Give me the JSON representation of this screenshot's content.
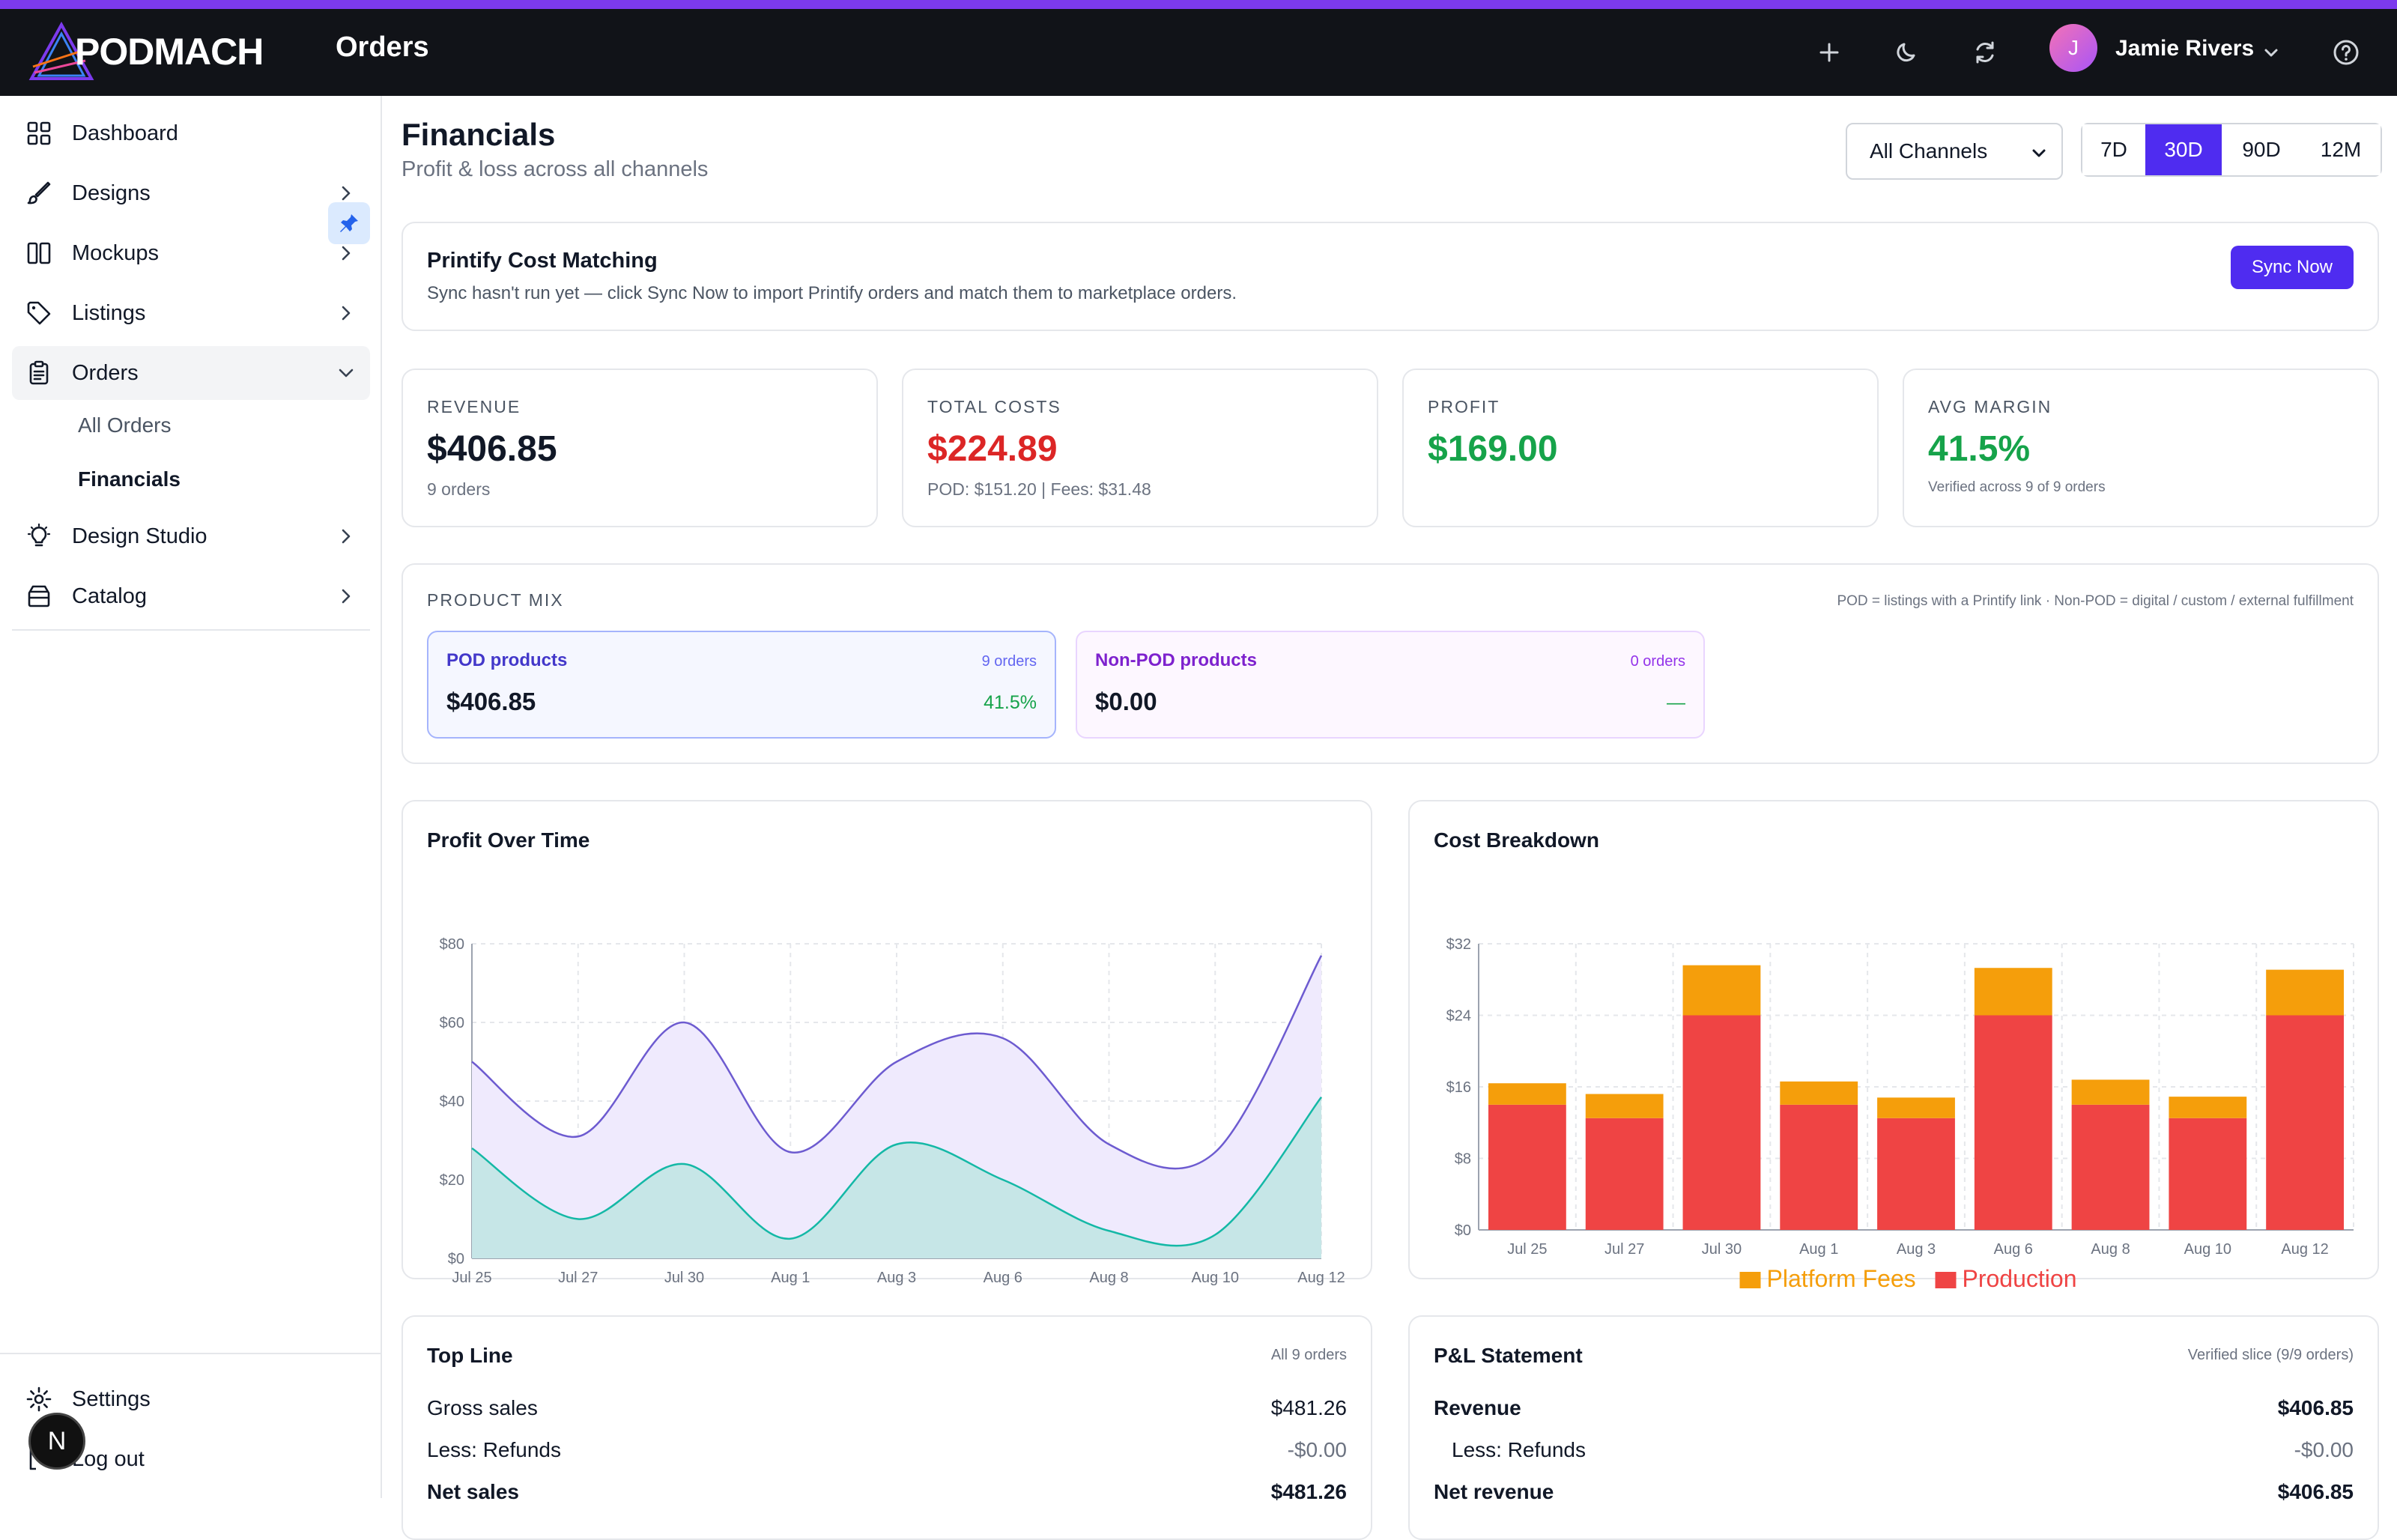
{
  "app": {
    "name": "PODMACH",
    "section": "Orders"
  },
  "topbar": {
    "user": {
      "initial": "J",
      "name": "Jamie Rivers"
    }
  },
  "sidebar": {
    "items": [
      {
        "label": "Dashboard"
      },
      {
        "label": "Designs"
      },
      {
        "label": "Mockups"
      },
      {
        "label": "Listings"
      },
      {
        "label": "Orders"
      },
      {
        "label": "Design Studio"
      },
      {
        "label": "Catalog"
      }
    ],
    "orders_sub": [
      "All Orders",
      "Financials"
    ],
    "footer": [
      {
        "label": "Settings"
      },
      {
        "label": "Log out"
      }
    ],
    "badge": "N"
  },
  "page": {
    "title": "Financials",
    "subtitle": "Profit & loss across all channels"
  },
  "filters": {
    "channel": "All Channels",
    "ranges": [
      "7D",
      "30D",
      "90D",
      "12M"
    ],
    "selected_range": "30D"
  },
  "sync": {
    "title": "Printify Cost Matching",
    "desc": "Sync hasn't run yet — click Sync Now to import Printify orders and match them to marketplace orders.",
    "button": "Sync Now"
  },
  "kpis": [
    {
      "label": "REVENUE",
      "value": "$406.85",
      "note": "9 orders",
      "color": "#111827"
    },
    {
      "label": "TOTAL COSTS",
      "value": "$224.89",
      "note": "POD: $151.20 | Fees: $31.48",
      "color": "#dc2626"
    },
    {
      "label": "PROFIT",
      "value": "$169.00",
      "note": "",
      "color": "#16a34a"
    },
    {
      "label": "AVG MARGIN",
      "value": "41.5%",
      "note": "Verified across 9 of 9 orders",
      "color": "#16a34a"
    }
  ],
  "product_mix": {
    "label": "PRODUCT MIX",
    "note": "POD = listings with a Printify link · Non-POD = digital / custom / external fulfillment",
    "pod": {
      "name": "POD products",
      "count": "9 orders",
      "value": "$406.85",
      "pct": "41.5%"
    },
    "non_pod": {
      "name": "Non-POD products",
      "count": "0 orders",
      "value": "$0.00",
      "pct": "—"
    }
  },
  "profit_chart": {
    "title": "Profit Over Time",
    "colors": {
      "revenue": "#6d5bd0",
      "revenue_fill": "#efeafd",
      "profit": "#14b8a6",
      "profit_fill": "#c3e6e6"
    }
  },
  "cost_chart": {
    "title": "Cost Breakdown",
    "colors": {
      "platform": "#f59e0b",
      "production": "#ef4444"
    }
  },
  "chart_data": [
    {
      "type": "area",
      "title": "Profit Over Time",
      "categories": [
        "Jul 25",
        "Jul 27",
        "Jul 30",
        "Aug 1",
        "Aug 3",
        "Aug 6",
        "Aug 8",
        "Aug 10",
        "Aug 12"
      ],
      "ylim": [
        0,
        80
      ],
      "yticks": [
        "$0",
        "$20",
        "$40",
        "$60",
        "$80"
      ],
      "series": [
        {
          "values": [
            50,
            31,
            60,
            27,
            50,
            56,
            29,
            27,
            77
          ]
        },
        {
          "values": [
            28,
            10,
            24,
            5,
            29,
            20,
            7,
            6,
            41
          ]
        }
      ]
    },
    {
      "type": "bar",
      "title": "Cost Breakdown",
      "categories": [
        "Jul 25",
        "Jul 27",
        "Jul 30",
        "Aug 1",
        "Aug 3",
        "Aug 6",
        "Aug 8",
        "Aug 10",
        "Aug 12"
      ],
      "ylim": [
        0,
        32
      ],
      "yticks": [
        "$0",
        "$8",
        "$16",
        "$24",
        "$32"
      ],
      "series": [
        {
          "name": "Production",
          "values": [
            14,
            12.5,
            24,
            14,
            12.5,
            24,
            14,
            12.5,
            24
          ]
        },
        {
          "name": "Platform Fees",
          "values": [
            2.4,
            2.7,
            5.6,
            2.6,
            2.3,
            5.3,
            2.8,
            2.4,
            5.1
          ]
        }
      ],
      "legend": [
        "Platform Fees",
        "Production"
      ],
      "stacked": true
    }
  ],
  "top_line": {
    "title": "Top Line",
    "note": "All 9 orders",
    "rows": [
      {
        "label": "Gross sales",
        "value": "$481.26"
      },
      {
        "label": "Less: Refunds",
        "value": "-$0.00"
      },
      {
        "label": "Net sales",
        "value": "$481.26"
      }
    ]
  },
  "pl_statement": {
    "title": "P&L Statement",
    "note": "Verified slice (9/9 orders)",
    "rows": [
      {
        "label": "Revenue",
        "value": "$406.85"
      },
      {
        "label": "Less: Refunds",
        "value": "-$0.00"
      },
      {
        "label": "Net revenue",
        "value": "$406.85"
      }
    ]
  }
}
